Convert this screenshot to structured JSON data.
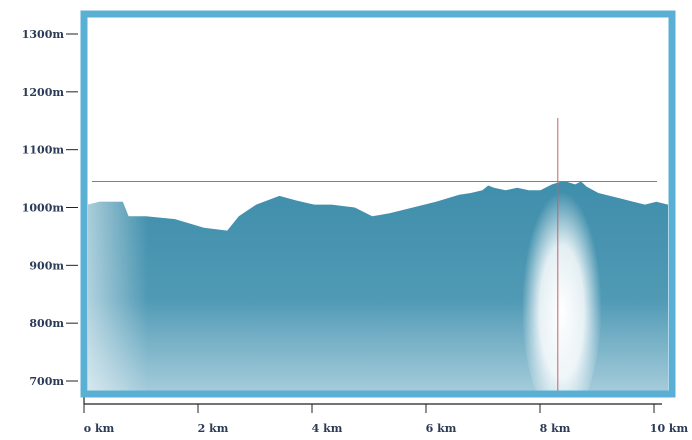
{
  "chart_data": {
    "type": "area",
    "title": "",
    "xlabel": "",
    "ylabel": "",
    "xlim": [
      0,
      10
    ],
    "ylim": [
      650,
      1330
    ],
    "x_ticks": [
      0,
      2,
      4,
      6,
      8,
      10
    ],
    "x_tick_labels": [
      "o km",
      "2 km",
      "4 km",
      "6 km",
      "8 km",
      "10 km"
    ],
    "y_ticks": [
      700,
      800,
      900,
      1000,
      1100,
      1200,
      1300
    ],
    "y_tick_labels": [
      "700m",
      "800m",
      "900m",
      "1000m",
      "1100m",
      "1200m",
      "1300m"
    ],
    "grid": false,
    "legend": "none",
    "colors": {
      "frame": "#5ab0d4",
      "fill_dark": "#3a88a6",
      "fill_light": "#dfeef4",
      "crosshair": "#c0646a",
      "axis": "#222222",
      "tick_text": "#2b3a55"
    },
    "crosshair": {
      "x": 8.1,
      "y": 1045
    },
    "series": [
      {
        "x": [
          0,
          0.2,
          0.6,
          0.7,
          1.0,
          1.5,
          2.0,
          2.4,
          2.6,
          2.9,
          3.3,
          3.6,
          3.9,
          4.2,
          4.6,
          4.9,
          5.2,
          5.6,
          6.0,
          6.4,
          6.6,
          6.8,
          6.9,
          7.0,
          7.2,
          7.4,
          7.6,
          7.8,
          8.0,
          8.2,
          8.4,
          8.5,
          8.6,
          8.8,
          9.0,
          9.2,
          9.4,
          9.6,
          9.8,
          10.0
        ],
        "y": [
          1005,
          1010,
          1010,
          985,
          985,
          980,
          965,
          960,
          985,
          1005,
          1020,
          1012,
          1005,
          1005,
          1000,
          985,
          990,
          1000,
          1010,
          1022,
          1025,
          1030,
          1038,
          1034,
          1030,
          1034,
          1030,
          1030,
          1040,
          1046,
          1040,
          1045,
          1036,
          1025,
          1020,
          1015,
          1010,
          1005,
          1010,
          1005
        ]
      }
    ]
  }
}
